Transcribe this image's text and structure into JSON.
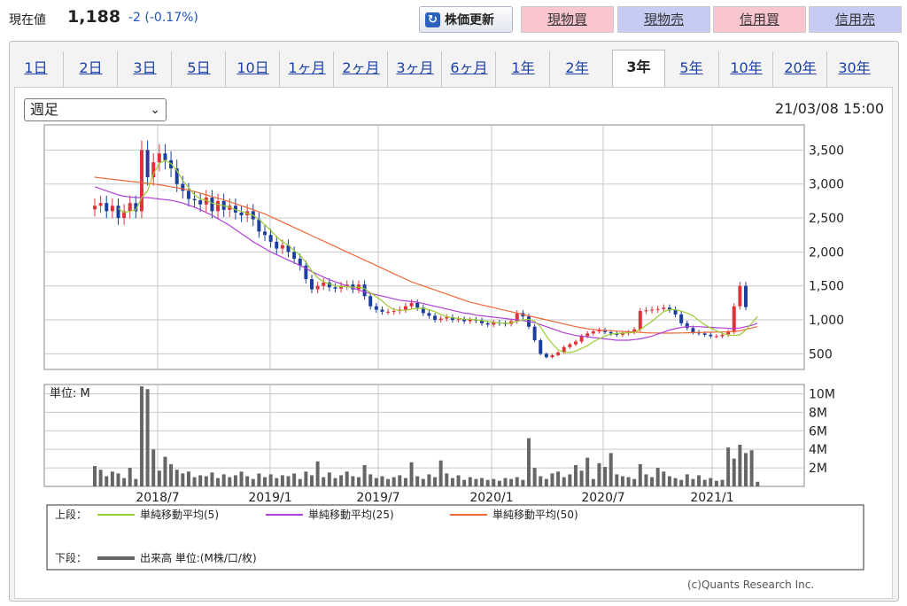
{
  "quote": {
    "label": "現在値",
    "price": "1,188",
    "change": "-2 (-0.17%)",
    "refresh_label": "株価更新",
    "buttons": [
      "現物買",
      "現物売",
      "信用買",
      "信用売"
    ]
  },
  "tabs": [
    "1日",
    "2日",
    "3日",
    "5日",
    "10日",
    "1ヶ月",
    "2ヶ月",
    "3ヶ月",
    "6ヶ月",
    "1年",
    "2年",
    "3年",
    "5年",
    "10年",
    "20年",
    "30年"
  ],
  "active_tab": "3年",
  "period_select": "週足",
  "timestamp": "21/03/08 15:00",
  "copyright": "(c)Quants Research Inc.",
  "colors": {
    "up": "#e0303a",
    "down": "#1c3e9c",
    "ma5": "#9acd32",
    "ma25": "#b040d8",
    "ma50": "#f06838",
    "volume": "#666666"
  },
  "chart_data": [
    {
      "type": "candlestick",
      "x_labels": [
        "2018/7",
        "2019/1",
        "2019/7",
        "2020/1",
        "2020/7",
        "2021/1"
      ],
      "y_ticks": [
        "3,500",
        "3,000",
        "2,500",
        "2,000",
        "1,500",
        "1,000",
        "500"
      ],
      "ylim": [
        270,
        3870
      ],
      "grid": true,
      "closes": [
        2680,
        2720,
        2600,
        2680,
        2500,
        2600,
        2720,
        2600,
        3500,
        3100,
        3320,
        3450,
        3350,
        3230,
        3000,
        2900,
        2780,
        2760,
        2700,
        2800,
        2600,
        2750,
        2620,
        2680,
        2580,
        2540,
        2600,
        2480,
        2300,
        2250,
        2150,
        2050,
        2100,
        2000,
        1900,
        1800,
        1600,
        1450,
        1500,
        1550,
        1480,
        1460,
        1500,
        1520,
        1450,
        1520,
        1350,
        1200,
        1150,
        1120,
        1120,
        1130,
        1150,
        1200,
        1250,
        1180,
        1100,
        1060,
        1000,
        1020,
        1040,
        1000,
        1010,
        980,
        1000,
        990,
        950,
        930,
        960,
        950,
        940,
        980,
        1100,
        1050,
        900,
        700,
        500,
        450,
        480,
        520,
        600,
        640,
        680,
        760,
        800,
        830,
        850,
        820,
        800,
        780,
        800,
        820,
        860,
        1130,
        1140,
        1150,
        1160,
        1180,
        1150,
        1080,
        950,
        880,
        820,
        800,
        780,
        760,
        760,
        780,
        820,
        1200,
        1500,
        1188
      ],
      "ma5": [
        null,
        null,
        null,
        null,
        2640,
        2580,
        2600,
        2620,
        2800,
        2900,
        3150,
        3300,
        3350,
        3300,
        3200,
        3050,
        2950,
        2840,
        2780,
        2760,
        2720,
        2700,
        2680,
        2660,
        2620,
        2600,
        2570,
        2540,
        2480,
        2400,
        2320,
        2220,
        2150,
        2100,
        2020,
        1950,
        1850,
        1720,
        1620,
        1560,
        1530,
        1500,
        1490,
        1490,
        1480,
        1480,
        1460,
        1400,
        1340,
        1280,
        1200,
        1150,
        1140,
        1140,
        1160,
        1170,
        1170,
        1150,
        1120,
        1080,
        1050,
        1030,
        1020,
        1010,
        1010,
        1000,
        990,
        975,
        965,
        955,
        950,
        955,
        980,
        1000,
        1010,
        980,
        900,
        760,
        650,
        560,
        520,
        520,
        540,
        580,
        620,
        680,
        720,
        760,
        790,
        800,
        805,
        810,
        815,
        860,
        920,
        980,
        1050,
        1120,
        1150,
        1150,
        1130,
        1100,
        1060,
        990,
        930,
        880,
        840,
        800,
        780,
        770,
        780,
        850,
        950,
        1050
      ],
      "ma25": [
        2960,
        2930,
        2900,
        2870,
        2840,
        2820,
        2810,
        2800,
        2800,
        2800,
        2790,
        2780,
        2770,
        2760,
        2740,
        2720,
        2690,
        2660,
        2620,
        2580,
        2540,
        2490,
        2440,
        2390,
        2330,
        2270,
        2210,
        2150,
        2100,
        2050,
        2000,
        1960,
        1920,
        1880,
        1840,
        1800,
        1760,
        1710,
        1670,
        1630,
        1590,
        1560,
        1530,
        1500,
        1470,
        1440,
        1410,
        1390,
        1370,
        1350,
        1330,
        1310,
        1290,
        1280,
        1270,
        1260,
        1240,
        1220,
        1200,
        1180,
        1160,
        1140,
        1120,
        1100,
        1090,
        1070,
        1060,
        1050,
        1040,
        1030,
        1020,
        1010,
        1000,
        990,
        975,
        960,
        930,
        900,
        870,
        840,
        810,
        790,
        770,
        760,
        750,
        740,
        730,
        720,
        710,
        700,
        700,
        700,
        710,
        720,
        740,
        760,
        790,
        820,
        850,
        870,
        890,
        900,
        900,
        900,
        895,
        890,
        885,
        880,
        875,
        870,
        880,
        900,
        920,
        950
      ],
      "ma50": [
        3100,
        3090,
        3080,
        3070,
        3060,
        3050,
        3040,
        3030,
        3020,
        3010,
        3000,
        2990,
        2975,
        2960,
        2945,
        2930,
        2910,
        2890,
        2865,
        2840,
        2815,
        2790,
        2765,
        2740,
        2710,
        2680,
        2650,
        2620,
        2590,
        2560,
        2520,
        2480,
        2440,
        2400,
        2360,
        2320,
        2280,
        2240,
        2200,
        2160,
        2120,
        2080,
        2040,
        2000,
        1960,
        1920,
        1880,
        1840,
        1800,
        1760,
        1720,
        1680,
        1640,
        1600,
        1560,
        1530,
        1500,
        1470,
        1440,
        1410,
        1380,
        1350,
        1320,
        1290,
        1260,
        1240,
        1220,
        1200,
        1180,
        1160,
        1140,
        1120,
        1100,
        1080,
        1060,
        1040,
        1020,
        1000,
        980,
        960,
        940,
        920,
        900,
        885,
        870,
        860,
        850,
        845,
        840,
        835,
        830,
        825,
        820,
        815,
        810,
        808,
        806,
        805,
        805,
        806,
        808,
        810,
        812,
        814,
        816,
        818,
        820,
        822,
        825,
        830,
        840,
        860,
        880,
        900
      ]
    },
    {
      "type": "bar",
      "unit_label": "単位: M",
      "y_ticks": [
        "10M",
        "8M",
        "6M",
        "4M",
        "2M"
      ],
      "ylim": [
        0,
        11
      ],
      "values": [
        2.2,
        1.8,
        1.1,
        1.6,
        1.4,
        0.9,
        2.0,
        0.8,
        10.8,
        10.5,
        4.0,
        1.7,
        3.2,
        2.4,
        1.8,
        1.4,
        1.6,
        1.0,
        1.2,
        1.1,
        1.5,
        0.9,
        1.3,
        1.0,
        1.2,
        1.6,
        1.1,
        0.8,
        1.4,
        1.0,
        1.3,
        0.9,
        1.2,
        1.1,
        1.4,
        0.8,
        1.6,
        1.2,
        2.7,
        1.0,
        1.5,
        0.9,
        1.2,
        1.6,
        1.1,
        1.0,
        2.3,
        1.3,
        0.9,
        1.1,
        0.8,
        1.0,
        1.2,
        0.9,
        2.6,
        1.1,
        0.8,
        1.3,
        1.0,
        2.8,
        1.4,
        0.9,
        1.2,
        0.7,
        1.0,
        0.8,
        0.9,
        0.7,
        0.8,
        0.6,
        0.9,
        0.8,
        1.0,
        0.7,
        5.2,
        2.0,
        1.1,
        0.8,
        1.4,
        1.6,
        1.0,
        1.3,
        2.3,
        1.7,
        3.1,
        0.8,
        2.5,
        2.1,
        3.6,
        1.3,
        1.1,
        1.0,
        0.8,
        2.4,
        1.3,
        1.0,
        2.0,
        1.6,
        1.1,
        0.9,
        0.7,
        1.3,
        0.8,
        1.2,
        0.7,
        0.9,
        0.6,
        0.7,
        4.2,
        3.0,
        4.5,
        3.6,
        3.9,
        0.5
      ]
    }
  ],
  "legend": {
    "upper_label": "上段：",
    "lower_label": "下段：",
    "ma5": "単純移動平均(5)",
    "ma25": "単純移動平均(25)",
    "ma50": "単純移動平均(50)",
    "volume": "出来高 単位:(M株/口/枚)"
  }
}
